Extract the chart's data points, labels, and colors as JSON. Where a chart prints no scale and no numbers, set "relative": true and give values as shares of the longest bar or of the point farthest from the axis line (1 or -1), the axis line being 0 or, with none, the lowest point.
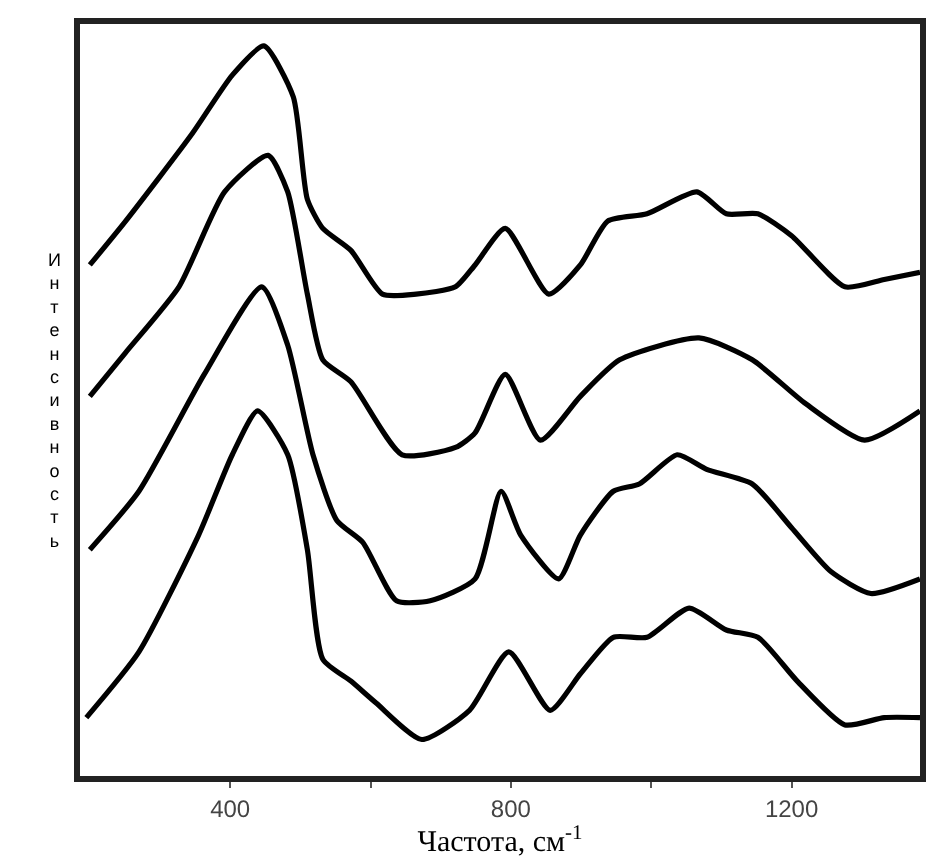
{
  "chart_data": {
    "type": "line",
    "relative": true,
    "xlabel": "Частота, см$^{-1}$",
    "ylabel": "Интенсивность",
    "xlim": [
      186,
      1383
    ],
    "xticks": [
      400,
      {
        "value": 600,
        "label": null
      },
      800,
      {
        "value": 1000,
        "label": null
      },
      1200
    ],
    "tick_labels": "x",
    "marker": "none",
    "line_style": "solid",
    "series": [
      {
        "color": "#000000",
        "x": [
          200,
          251,
          346,
          403,
          448,
          490,
          510,
          532,
          572,
          617,
          665,
          721,
          749,
          792,
          854,
          899,
          938,
          994,
          1065,
          1107,
          1152,
          1200,
          1276,
          1332,
          1383
        ],
        "values": [
          0.7,
          0.76,
          0.88,
          0.96,
          1.0,
          0.93,
          0.79,
          0.75,
          0.72,
          0.66,
          0.66,
          0.67,
          0.7,
          0.75,
          0.66,
          0.7,
          0.76,
          0.77,
          0.8,
          0.77,
          0.77,
          0.74,
          0.67,
          0.68,
          0.69
        ]
      },
      {
        "color": "#000000",
        "x": [
          200,
          251,
          327,
          392,
          454,
          482,
          510,
          532,
          572,
          645,
          721,
          749,
          792,
          842,
          899,
          955,
          1068,
          1144,
          1220,
          1304,
          1383
        ],
        "values": [
          0.52,
          0.58,
          0.67,
          0.8,
          0.85,
          0.8,
          0.66,
          0.57,
          0.54,
          0.44,
          0.45,
          0.47,
          0.55,
          0.46,
          0.52,
          0.57,
          0.6,
          0.57,
          0.51,
          0.46,
          0.5
        ]
      },
      {
        "color": "#000000",
        "x": [
          200,
          270,
          363,
          445,
          482,
          518,
          552,
          589,
          637,
          685,
          749,
          786,
          814,
          868,
          899,
          946,
          983,
          1037,
          1079,
          1144,
          1200,
          1256,
          1313,
          1383
        ],
        "values": [
          0.31,
          0.39,
          0.55,
          0.67,
          0.59,
          0.44,
          0.35,
          0.32,
          0.24,
          0.24,
          0.27,
          0.39,
          0.33,
          0.27,
          0.33,
          0.39,
          0.4,
          0.44,
          0.42,
          0.4,
          0.34,
          0.28,
          0.25,
          0.27
        ]
      },
      {
        "color": "#000000",
        "x": [
          195,
          270,
          355,
          403,
          439,
          482,
          510,
          532,
          572,
          608,
          673,
          741,
          797,
          856,
          899,
          946,
          994,
          1054,
          1107,
          1152,
          1208,
          1276,
          1332,
          1383
        ],
        "values": [
          0.08,
          0.17,
          0.33,
          0.44,
          0.5,
          0.44,
          0.31,
          0.16,
          0.13,
          0.1,
          0.05,
          0.09,
          0.17,
          0.09,
          0.14,
          0.19,
          0.19,
          0.23,
          0.2,
          0.19,
          0.13,
          0.07,
          0.08,
          0.08
        ]
      }
    ]
  }
}
